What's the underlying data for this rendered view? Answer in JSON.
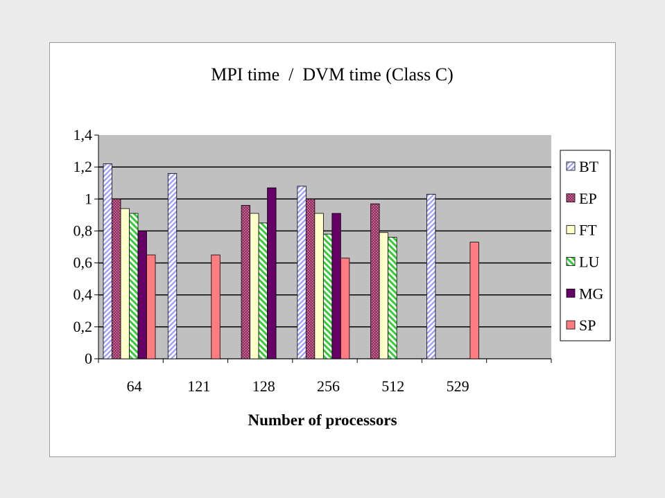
{
  "chart_data": {
    "type": "bar",
    "title": "MPI time  /  DVM time (Class C)",
    "xlabel": "Number of processors",
    "ylabel": "",
    "categories": [
      "64",
      "121",
      "128",
      "256",
      "512",
      "529"
    ],
    "ylim": [
      0,
      1.4
    ],
    "yticks": [
      "0",
      "0,2",
      "0,4",
      "0,6",
      "0,8",
      "1",
      "1,2",
      "1,4"
    ],
    "grid": true,
    "legend_position": "right",
    "series": [
      {
        "name": "BT",
        "color": "#9999ff",
        "pattern": "diagonal-stripes",
        "values": [
          1.22,
          1.16,
          null,
          1.08,
          null,
          1.03
        ]
      },
      {
        "name": "EP",
        "color": "#993366",
        "pattern": "dots",
        "values": [
          1.0,
          null,
          0.96,
          1.0,
          0.97,
          null
        ]
      },
      {
        "name": "FT",
        "color": "#ffffcc",
        "pattern": "solid",
        "values": [
          0.94,
          null,
          0.91,
          0.91,
          0.79,
          null
        ]
      },
      {
        "name": "LU",
        "color": "#33cc33",
        "pattern": "diagonal-stripes",
        "values": [
          0.91,
          null,
          0.85,
          0.78,
          0.76,
          null
        ]
      },
      {
        "name": "MG",
        "color": "#660066",
        "pattern": "solid",
        "values": [
          0.8,
          null,
          1.07,
          0.91,
          null,
          null
        ]
      },
      {
        "name": "SP",
        "color": "#ff7c80",
        "pattern": "solid",
        "values": [
          0.65,
          0.65,
          null,
          0.63,
          null,
          0.73
        ]
      }
    ]
  }
}
